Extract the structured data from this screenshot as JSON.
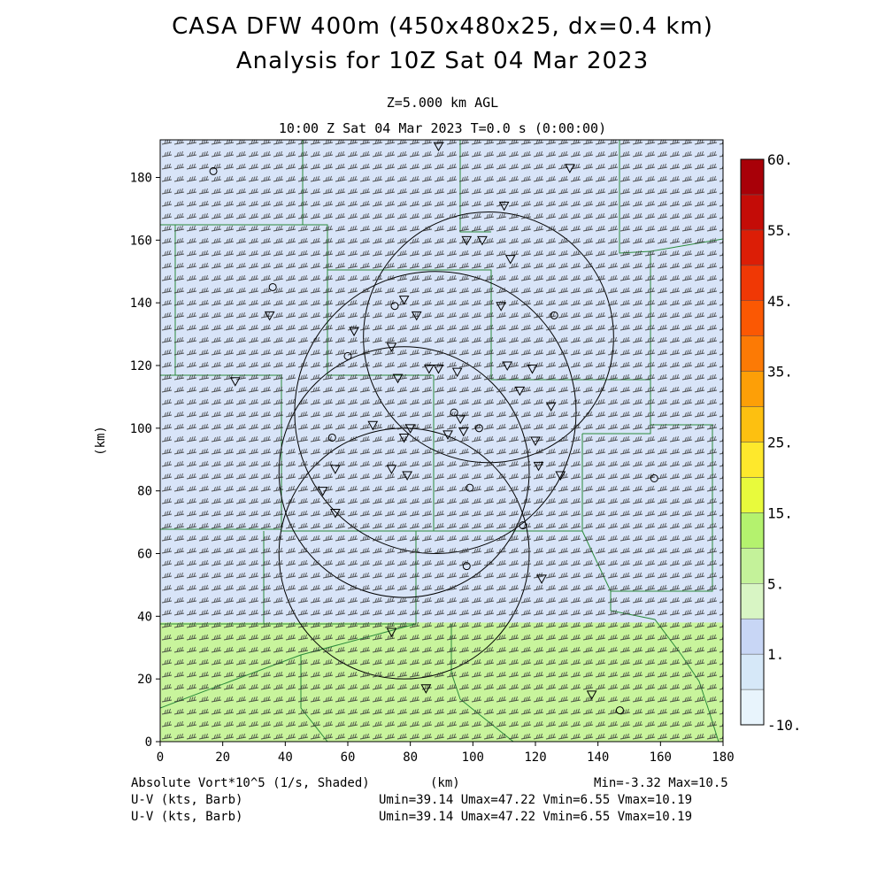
{
  "header": {
    "title": "CASA DFW 400m (450x480x25, dx=0.4 km)",
    "subtitle": "Analysis for 10Z Sat 04 Mar 2023",
    "level": "Z=5.000 km AGL",
    "time": "10:00 Z Sat 04 Mar 2023    T=0.0 s (0:00:00)"
  },
  "footer": {
    "field": "Absolute Vort*10^5 (1/s, Shaded)",
    "xunit": "(km)",
    "minmax": "Min=-3.32 Max=10.5",
    "line2_label": "U-V (kts, Barb)",
    "line2_stats": "Umin=39.14 Umax=47.22 Vmin=6.55 Vmax=10.19",
    "line3_label": "U-V (kts, Barb)",
    "line3_stats": "Umin=39.14 Umax=47.22 Vmin=6.55 Vmax=10.19"
  },
  "chart_data": {
    "type": "heatmap",
    "field": "Absolute Vort*10^5 (1/s, Shaded)",
    "xlabel": "",
    "ylabel": "(km)",
    "xlim": [
      0,
      180
    ],
    "ylim": [
      0,
      192
    ],
    "xticks": [
      "0",
      "20",
      "40",
      "60",
      "80",
      "100",
      "120",
      "140",
      "160",
      "180"
    ],
    "yticks": [
      "0",
      "20",
      "40",
      "60",
      "80",
      "100",
      "120",
      "140",
      "160",
      "180"
    ],
    "colorbar": {
      "labels": [
        "-10.",
        "1.",
        "5.",
        "15.",
        "25.",
        "35.",
        "45.",
        "55.",
        "60."
      ],
      "colors": [
        "#e8f4fc",
        "#d6e8f8",
        "#c8d6f5",
        "#d8f5c4",
        "#c4f29a",
        "#b4f26e",
        "#e8fa3c",
        "#fee82c",
        "#fdc010",
        "#fd9f07",
        "#fc7a05",
        "#fb5803",
        "#f03805",
        "#dc1e06",
        "#c40c07",
        "#a80008"
      ]
    },
    "regions": [
      {
        "name": "low",
        "y_from": 38,
        "y_to": 192,
        "color": "#d8e4f8"
      },
      {
        "name": "high",
        "y_from": 0,
        "y_to": 38,
        "color": "#c8f49c"
      }
    ],
    "wind": {
      "u_min": 39.14,
      "u_max": 47.22,
      "v_min": 6.55,
      "v_max": 10.19,
      "units": "kts"
    },
    "radar_rings": [
      {
        "cx": 78,
        "cy": 86,
        "r": 40
      },
      {
        "cx": 78,
        "cy": 60,
        "r": 40
      },
      {
        "cx": 88,
        "cy": 105,
        "r": 45
      },
      {
        "cx": 105,
        "cy": 129,
        "r": 40
      }
    ],
    "range": {
      "min": -3.32,
      "max": 10.5
    }
  }
}
